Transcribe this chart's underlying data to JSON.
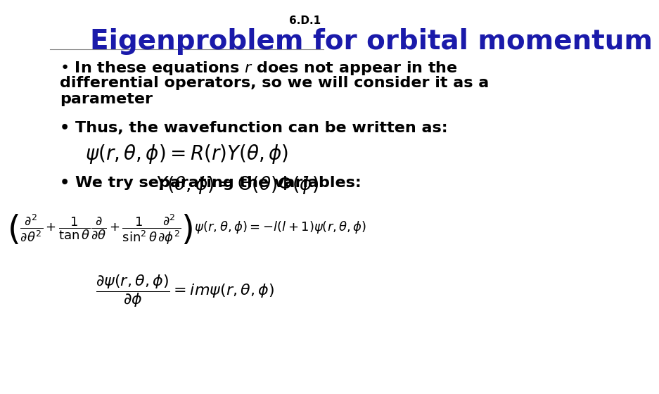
{
  "title": "Eigenproblem for orbital momentum",
  "slide_number": "6.D.1",
  "title_color": "#1a1aaa",
  "title_fontsize": 28,
  "body_fontsize": 16,
  "background_color": "#ffffff",
  "text_color": "#000000",
  "bullet1_line1": "• In these equations $r$ does not appear in the",
  "bullet1_line2": "differential operators, so we will consider it as a",
  "bullet1_line3": "parameter",
  "bullet2": "• Thus, the wavefunction can be written as:",
  "eq1": "$\\psi(r,\\theta,\\phi) = R(r)Y(\\theta,\\phi)$",
  "bullet3": "• We try separating the variables:",
  "eq2": "$Y(\\theta,\\phi) = \\Theta(\\theta)\\Phi(\\phi)$",
  "eq3": "$\\left(\\dfrac{\\partial^2}{\\partial\\theta^2}+\\dfrac{1}{\\tan\\theta}\\dfrac{\\partial}{\\partial\\theta}+\\dfrac{1}{\\sin^2\\theta}\\dfrac{\\partial^2}{\\partial\\phi^2}\\right)\\psi(r,\\theta,\\phi) = -l(l+1)\\psi(r,\\theta,\\phi)$",
  "eq4": "$\\dfrac{\\partial\\psi(r,\\theta,\\phi)}{\\partial\\phi} = im\\psi(r,\\theta,\\phi)$"
}
